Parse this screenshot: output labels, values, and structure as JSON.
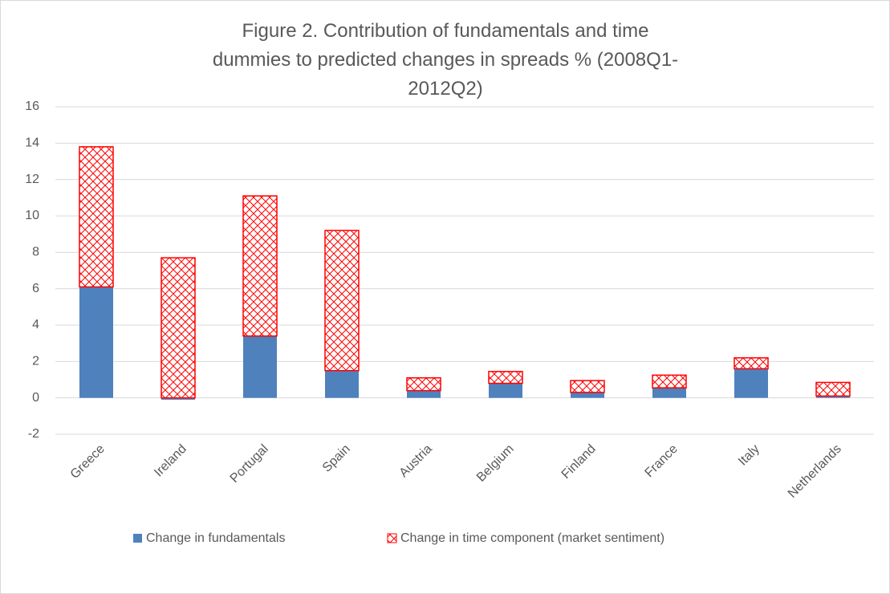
{
  "chart_data": {
    "type": "bar",
    "stacked": true,
    "title": "Figure 2. Contribution of fundamentals and time dummies to predicted changes in spreads % (2008Q1-2012Q2)",
    "categories": [
      "Greece",
      "Ireland",
      "Portugal",
      "Spain",
      "Austria",
      "Belgium",
      "Finland",
      "France",
      "Italy",
      "Netherlands"
    ],
    "series": [
      {
        "name": "Change in fundamentals",
        "color": "#4f81bd",
        "pattern": "solid",
        "values": [
          6.1,
          -0.1,
          3.4,
          1.5,
          0.4,
          0.8,
          0.3,
          0.55,
          1.6,
          0.1
        ]
      },
      {
        "name": "Change in time component (market sentiment)",
        "color": "#ff0000",
        "pattern": "crosshatch",
        "values": [
          7.7,
          7.7,
          7.7,
          7.7,
          0.7,
          0.65,
          0.65,
          0.7,
          0.6,
          0.75
        ]
      }
    ],
    "ylim": [
      -2,
      16
    ],
    "yticks": [
      -2,
      0,
      2,
      4,
      6,
      8,
      10,
      12,
      14,
      16
    ],
    "grid": true,
    "legend": "bottom"
  }
}
